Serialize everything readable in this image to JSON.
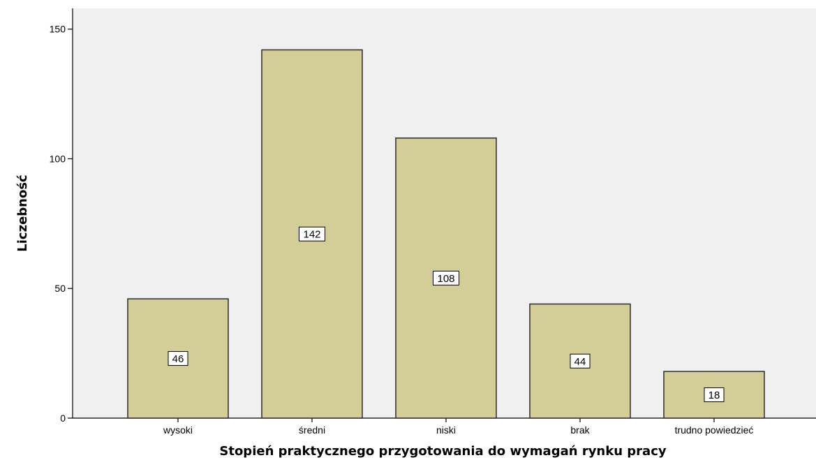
{
  "chart_data": {
    "type": "bar",
    "categories": [
      "wysoki",
      "średni",
      "niski",
      "brak",
      "trudno powiedzieć"
    ],
    "values": [
      46,
      142,
      108,
      44,
      18
    ],
    "data_labels": [
      "46",
      "142",
      "108",
      "44",
      "18"
    ],
    "title": "",
    "xlabel": "Stopień praktycznego przygotowania do wymagań rynku pracy",
    "ylabel": "Liczebność",
    "ylim": [
      0,
      158
    ],
    "yticks": [
      0,
      50,
      100,
      150
    ],
    "ytick_labels": [
      "0",
      "50",
      "100",
      "150"
    ],
    "grid": false,
    "legend": "none"
  },
  "colors": {
    "plot_background": "#f0f0f0",
    "bar_fill": "#d3ce97",
    "bar_stroke": "#2b2b2b",
    "axis": "#000000"
  }
}
